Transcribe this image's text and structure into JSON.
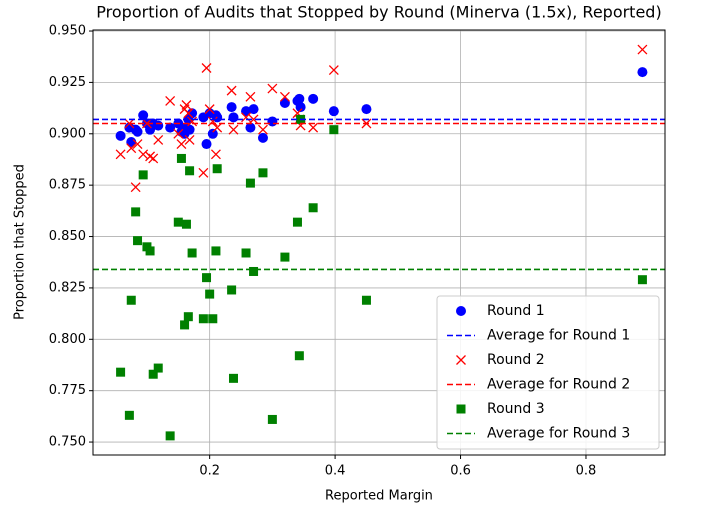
{
  "chart_data": {
    "type": "scatter",
    "title": "Proportion of Audits that Stopped by Round (Minerva (1.5x), Reported)",
    "x_label": "Reported Margin",
    "y_label": "Proportion that Stopped",
    "x": [
      0.058,
      0.072,
      0.075,
      0.082,
      0.085,
      0.094,
      0.1,
      0.105,
      0.11,
      0.118,
      0.137,
      0.15,
      0.155,
      0.16,
      0.163,
      0.166,
      0.168,
      0.172,
      0.19,
      0.195,
      0.2,
      0.205,
      0.21,
      0.212,
      0.235,
      0.238,
      0.258,
      0.265,
      0.27,
      0.285,
      0.3,
      0.32,
      0.34,
      0.343,
      0.345,
      0.365,
      0.398,
      0.45,
      0.89
    ],
    "series": [
      {
        "name": "Round 1",
        "color": "#0000ff",
        "marker": "circle",
        "values": [
          0.899,
          0.903,
          0.896,
          0.902,
          0.901,
          0.909,
          0.905,
          0.902,
          0.905,
          0.904,
          0.903,
          0.905,
          0.901,
          0.9,
          0.903,
          0.907,
          0.902,
          0.91,
          0.908,
          0.895,
          0.91,
          0.9,
          0.909,
          0.908,
          0.913,
          0.908,
          0.911,
          0.903,
          0.912,
          0.898,
          0.906,
          0.915,
          0.916,
          0.917,
          0.913,
          0.917,
          0.911,
          0.912,
          0.93
        ],
        "average": {
          "name": "Average for Round 1",
          "value": 0.907
        }
      },
      {
        "name": "Round 2",
        "color": "#ff0000",
        "marker": "x",
        "values": [
          0.89,
          0.905,
          0.893,
          0.874,
          0.895,
          0.89,
          0.905,
          0.889,
          0.888,
          0.897,
          0.916,
          0.9,
          0.895,
          0.912,
          0.914,
          0.91,
          0.897,
          0.906,
          0.881,
          0.932,
          0.912,
          0.906,
          0.89,
          0.903,
          0.921,
          0.902,
          0.908,
          0.918,
          0.907,
          0.902,
          0.922,
          0.918,
          0.91,
          0.907,
          0.904,
          0.903,
          0.931,
          0.905,
          0.941
        ],
        "average": {
          "name": "Average for Round 2",
          "value": 0.905
        }
      },
      {
        "name": "Round 3",
        "color": "#008000",
        "marker": "square",
        "values": [
          0.784,
          0.763,
          0.819,
          0.862,
          0.848,
          0.88,
          0.845,
          0.843,
          0.783,
          0.786,
          0.753,
          0.857,
          0.888,
          0.807,
          0.856,
          0.811,
          0.882,
          0.842,
          0.81,
          0.83,
          0.822,
          0.81,
          0.843,
          0.883,
          0.824,
          0.781,
          0.842,
          0.876,
          0.833,
          0.881,
          0.761,
          0.84,
          0.857,
          0.792,
          0.907,
          0.864,
          0.902,
          0.819,
          0.829
        ],
        "average": {
          "name": "Average for Round 3",
          "value": 0.834
        }
      }
    ],
    "xlim": [
      0.014,
      0.926
    ],
    "ylim": [
      0.7437,
      0.9505
    ],
    "xticks": [
      0.2,
      0.4,
      0.6,
      0.8
    ],
    "yticks": [
      {
        "value": 0.75,
        "label": "0.750"
      },
      {
        "value": 0.775,
        "label": "0.775"
      },
      {
        "value": 0.8,
        "label": "0.800"
      },
      {
        "value": 0.825,
        "label": "0.825"
      },
      {
        "value": 0.85,
        "label": "0.850"
      },
      {
        "value": 0.875,
        "label": "0.875"
      },
      {
        "value": 0.9,
        "label": "0.900"
      },
      {
        "value": 0.925,
        "label": "0.925"
      },
      {
        "value": 0.95,
        "label": "0.950"
      }
    ],
    "grid": true,
    "legend": "lower right"
  }
}
